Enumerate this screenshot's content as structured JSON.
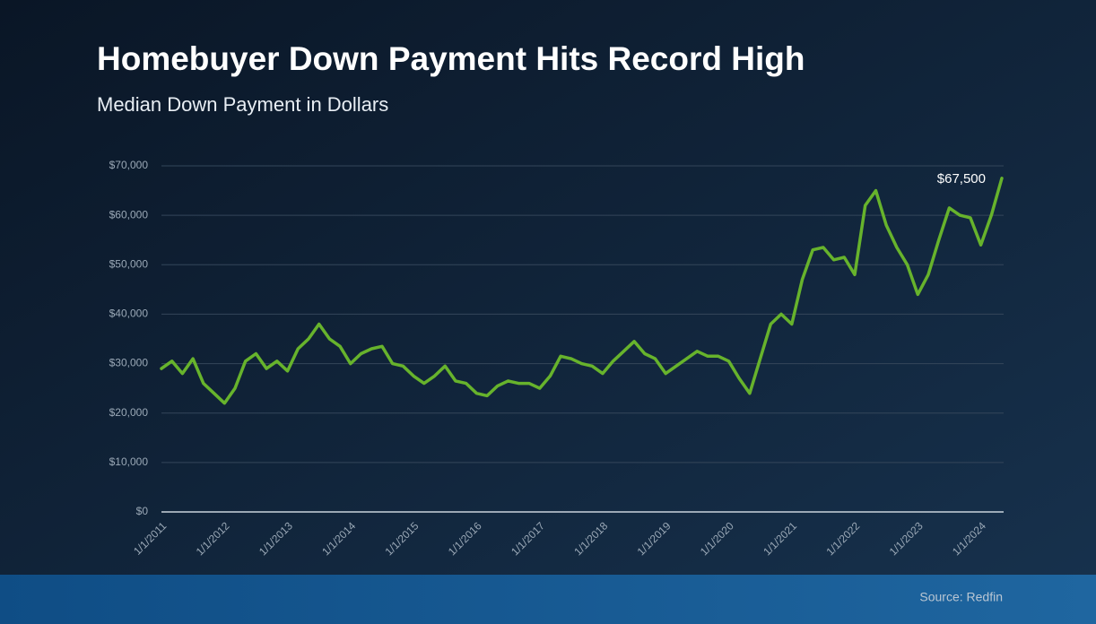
{
  "chart_data": {
    "type": "line",
    "title": "Homebuyer Down Payment Hits Record High",
    "subtitle": "Median Down Payment in Dollars",
    "source": "Source: Redfin",
    "categories": [
      "1/1/2011",
      null,
      null,
      null,
      null,
      null,
      "1/1/2012",
      null,
      null,
      null,
      null,
      null,
      "1/1/2013",
      null,
      null,
      null,
      null,
      null,
      "1/1/2014",
      null,
      null,
      null,
      null,
      null,
      "1/1/2015",
      null,
      null,
      null,
      null,
      null,
      "1/1/2016",
      null,
      null,
      null,
      null,
      null,
      "1/1/2017",
      null,
      null,
      null,
      null,
      null,
      "1/1/2018",
      null,
      null,
      null,
      null,
      null,
      "1/1/2019",
      null,
      null,
      null,
      null,
      null,
      "1/1/2020",
      null,
      null,
      null,
      null,
      null,
      "1/1/2021",
      null,
      null,
      null,
      null,
      null,
      "1/1/2022",
      null,
      null,
      null,
      null,
      null,
      "1/1/2023",
      null,
      null,
      null,
      null,
      null,
      "1/1/2024",
      null,
      null
    ],
    "series": [
      {
        "name": "Median Down Payment",
        "color": "#67b32c",
        "values": [
          29000,
          30500,
          28000,
          31000,
          26000,
          24000,
          22000,
          25000,
          30500,
          32000,
          29000,
          30500,
          28500,
          33000,
          35000,
          38000,
          35000,
          33500,
          30000,
          32000,
          33000,
          33500,
          30000,
          29500,
          27500,
          26000,
          27500,
          29500,
          26500,
          26000,
          24000,
          23500,
          25500,
          26500,
          26000,
          26000,
          25000,
          27500,
          31500,
          31000,
          30000,
          29500,
          28000,
          30500,
          32500,
          34500,
          32000,
          31000,
          28000,
          29500,
          31000,
          32500,
          31500,
          31500,
          30500,
          27000,
          24000,
          31000,
          38000,
          40000,
          38000,
          47000,
          53000,
          53500,
          51000,
          51500,
          48000,
          62000,
          65000,
          58000,
          53500,
          50000,
          44000,
          48000,
          55000,
          61500,
          60000,
          59500,
          54000,
          60000,
          67500
        ],
        "value_labels": [
          null,
          null,
          null,
          null,
          null,
          null,
          null,
          null,
          null,
          null,
          null,
          null,
          null,
          null,
          null,
          null,
          null,
          null,
          null,
          null,
          null,
          null,
          null,
          null,
          null,
          null,
          null,
          null,
          null,
          null,
          null,
          null,
          null,
          null,
          null,
          null,
          null,
          null,
          null,
          null,
          null,
          null,
          null,
          null,
          null,
          null,
          null,
          null,
          null,
          null,
          null,
          null,
          null,
          null,
          null,
          null,
          null,
          null,
          null,
          null,
          null,
          null,
          null,
          null,
          null,
          null,
          null,
          null,
          null,
          null,
          null,
          null,
          null,
          null,
          null,
          null,
          null,
          null,
          null,
          null,
          "$67,500"
        ]
      }
    ],
    "ylim": [
      0,
      70000
    ],
    "yticks": [
      {
        "value": 0,
        "label": "$0"
      },
      {
        "value": 10000,
        "label": "$10,000"
      },
      {
        "value": 20000,
        "label": "$20,000"
      },
      {
        "value": 30000,
        "label": "$30,000"
      },
      {
        "value": 40000,
        "label": "$40,000"
      },
      {
        "value": 50000,
        "label": "$50,000"
      },
      {
        "value": 60000,
        "label": "$60,000"
      },
      {
        "value": 70000,
        "label": "$70,000"
      }
    ],
    "grid": true
  }
}
